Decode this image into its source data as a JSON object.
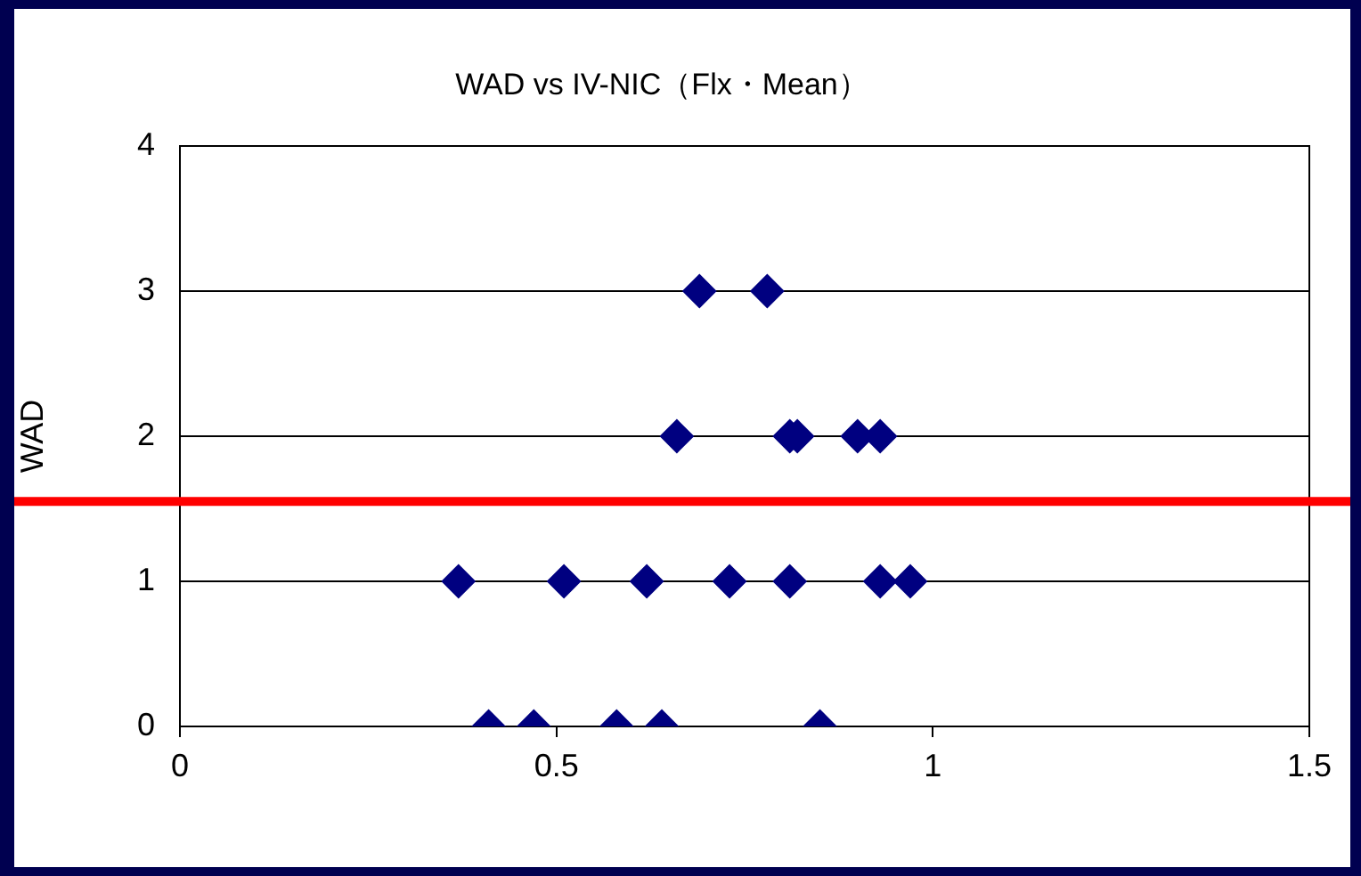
{
  "chart_data": {
    "type": "scatter",
    "title": "WAD vs IV-NIC（Flx・Mean）",
    "ylabel": "WAD",
    "x": [
      0.41,
      0.47,
      0.58,
      0.64,
      0.85,
      0.37,
      0.51,
      0.62,
      0.73,
      0.81,
      0.93,
      0.97,
      0.66,
      0.81,
      0.82,
      0.9,
      0.93,
      0.69,
      0.78
    ],
    "values": [
      0,
      0,
      0,
      0,
      0,
      1,
      1,
      1,
      1,
      1,
      1,
      1,
      2,
      2,
      2,
      2,
      2,
      3,
      3
    ],
    "color": "#000080",
    "marker": "diamond",
    "grid": "y",
    "legend": false,
    "xlim": [
      0,
      1.5
    ],
    "xticks": [
      0,
      0.5,
      1,
      1.5
    ],
    "ylim": [
      0,
      4
    ],
    "yticks": [
      0,
      1,
      2,
      3,
      4
    ],
    "ref_lines": [
      {
        "axis": "y",
        "value": 1.55,
        "color": "#ff0000"
      }
    ]
  }
}
